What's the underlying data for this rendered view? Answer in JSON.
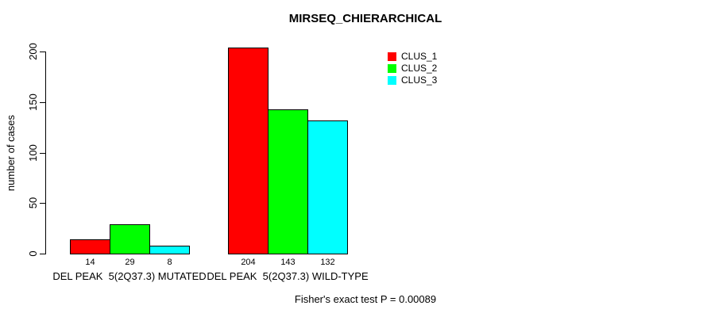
{
  "chart_data": {
    "type": "bar",
    "title": "MIRSEQ_CHIERARCHICAL",
    "ylabel": "number of cases",
    "xlabel": "",
    "categories": [
      "DEL PEAK  5(2Q37.3) MUTATED",
      "DEL PEAK  5(2Q37.3) WILD-TYPE"
    ],
    "series": [
      {
        "name": "CLUS_1",
        "color": "#ff0000",
        "values": [
          14,
          204
        ]
      },
      {
        "name": "CLUS_2",
        "color": "#00ff00",
        "values": [
          29,
          143
        ]
      },
      {
        "name": "CLUS_3",
        "color": "#00ffff",
        "values": [
          8,
          132
        ]
      }
    ],
    "bar_value_labels": [
      [
        14,
        29,
        8
      ],
      [
        204,
        143,
        132
      ]
    ],
    "yticks": [
      0,
      50,
      100,
      150,
      200
    ],
    "ylim": [
      0,
      204
    ],
    "grid": false,
    "legend_position": "top-right",
    "annotation": "Fisher's exact test P = 0.00089"
  },
  "colors": {
    "background": "#ffffff",
    "axis": "#000000",
    "clus_1": "#ff0000",
    "clus_2": "#00ff00",
    "clus_3": "#00ffff"
  }
}
